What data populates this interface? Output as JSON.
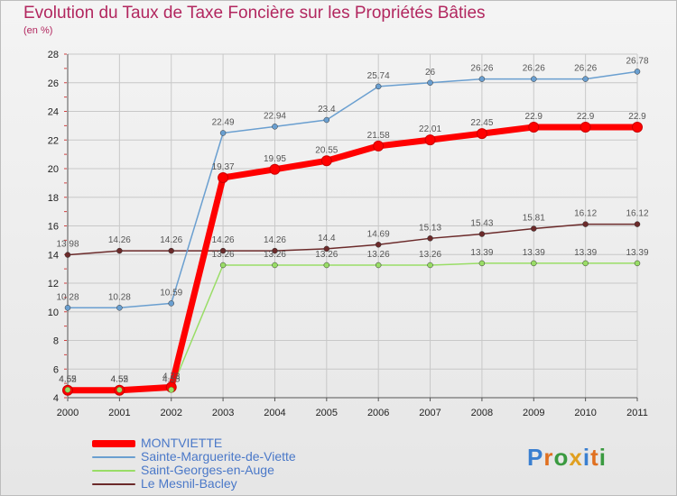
{
  "title": "Evolution du Taux de Taxe Foncière sur les Propriétés Bâties",
  "unit": "(en %)",
  "logo": "Proxiti",
  "chart_data": {
    "type": "line",
    "categories": [
      "2000",
      "2001",
      "2002",
      "2003",
      "2004",
      "2005",
      "2006",
      "2007",
      "2008",
      "2009",
      "2010",
      "2011"
    ],
    "ylim": [
      4,
      28
    ],
    "yticks": [
      4,
      6,
      8,
      10,
      12,
      14,
      16,
      18,
      20,
      22,
      24,
      26,
      28
    ],
    "series": [
      {
        "name": "MONTVIETTE",
        "color": "#ff0000",
        "values": [
          4.52,
          4.52,
          4.73,
          19.37,
          19.95,
          20.55,
          21.58,
          22.01,
          22.45,
          22.9,
          22.9,
          22.9
        ],
        "labels": [
          "4.52",
          "4.52",
          "4.73",
          "19.37",
          "19.95",
          "20.55",
          "21.58",
          "22.01",
          "22.45",
          "22.9",
          "22.9",
          "22.9"
        ]
      },
      {
        "name": "Sainte-Marguerite-de-Viette",
        "color": "#6a9fd0",
        "values": [
          10.28,
          10.28,
          10.59,
          22.49,
          22.94,
          23.4,
          25.74,
          26,
          26.26,
          26.26,
          26.26,
          26.78
        ],
        "labels": [
          "10.28",
          "10.28",
          "10.59",
          "22.49",
          "22.94",
          "23.4",
          "25.74",
          "26",
          "26.26",
          "26.26",
          "26.26",
          "26.78"
        ]
      },
      {
        "name": "Saint-Georges-en-Auge",
        "color": "#99dd66",
        "values": [
          4.55,
          4.55,
          4.55,
          13.26,
          13.26,
          13.26,
          13.26,
          13.26,
          13.39,
          13.39,
          13.39,
          13.39
        ],
        "labels": [
          "4.55",
          "4.55",
          "4.55",
          "13.26",
          "13.26",
          "13.26",
          "13.26",
          "13.26",
          "13.39",
          "13.39",
          "13.39",
          "13.39"
        ]
      },
      {
        "name": "Le Mesnil-Bacley",
        "color": "#6b2a2a",
        "values": [
          13.98,
          14.26,
          14.26,
          14.26,
          14.26,
          14.4,
          14.69,
          15.13,
          15.43,
          15.81,
          16.12,
          16.12
        ],
        "labels": [
          "13.98",
          "14.26",
          "14.26",
          "14.26",
          "14.26",
          "14.4",
          "14.69",
          "15.13",
          "15.43",
          "15.81",
          "16.12",
          "16.12"
        ]
      }
    ]
  }
}
